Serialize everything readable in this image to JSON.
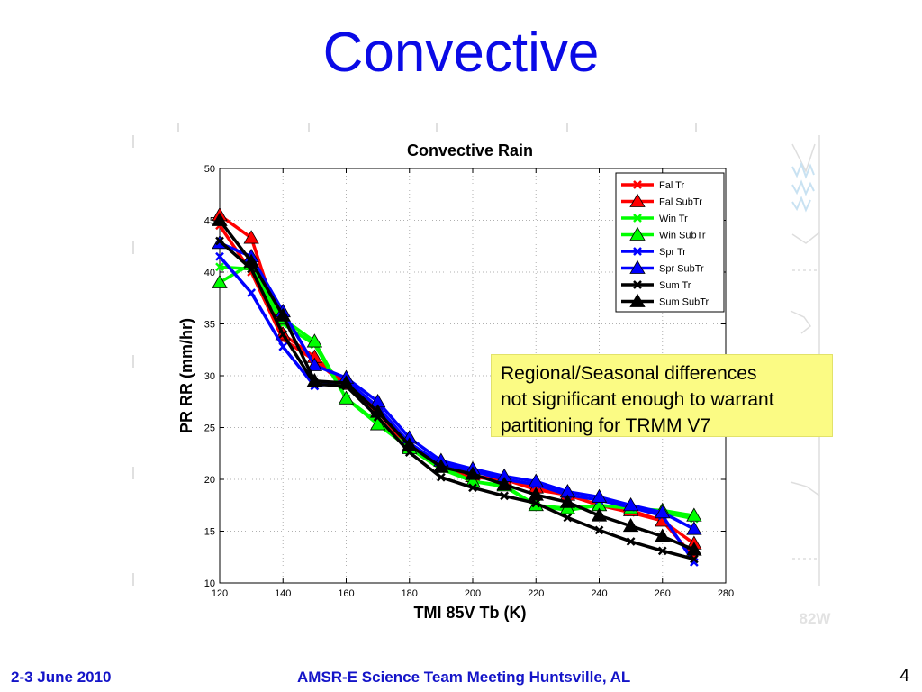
{
  "slide": {
    "title": "Convective",
    "note_lines": [
      "Regional/Seasonal differences",
      "not significant enough to warrant",
      "partitioning for TRMM V7"
    ],
    "footer_date": "2-3 June 2010",
    "footer_meeting": "AMSR-E Science Team Meeting  Huntsville, AL",
    "page_number": "4",
    "background_map_label": "82W"
  },
  "chart_data": {
    "type": "line",
    "title": "Convective Rain",
    "xlabel": "TMI 85V Tb (K)",
    "ylabel": "PR RR (mm/hr)",
    "xlim": [
      120,
      280
    ],
    "ylim": [
      10,
      50
    ],
    "xticks": [
      120,
      140,
      160,
      180,
      200,
      220,
      240,
      260,
      280
    ],
    "yticks": [
      10,
      15,
      20,
      25,
      30,
      35,
      40,
      45,
      50
    ],
    "grid": true,
    "legend_position": "top-right",
    "x": [
      120,
      130,
      140,
      150,
      160,
      170,
      180,
      190,
      200,
      210,
      220,
      230,
      240,
      250,
      260,
      270
    ],
    "series": [
      {
        "name": "Fal Tr",
        "color": "#ff0000",
        "marker": "x",
        "values": [
          44.5,
          40.0,
          33.5,
          31.5,
          29.0,
          26.5,
          23.0,
          21.0,
          20.2,
          20.0,
          19.0,
          18.5,
          17.5,
          16.8,
          16.0,
          12.5
        ]
      },
      {
        "name": "Fal SubTr",
        "color": "#ff0000",
        "marker": "triangle",
        "values": [
          45.5,
          43.3,
          34.0,
          31.8,
          29.2,
          26.8,
          23.2,
          21.2,
          20.3,
          20.0,
          19.2,
          18.5,
          17.5,
          17.0,
          16.0,
          13.8
        ]
      },
      {
        "name": "Win Tr",
        "color": "#00ff00",
        "marker": "x",
        "values": [
          40.5,
          40.3,
          35.0,
          33.0,
          27.8,
          25.5,
          23.0,
          21.0,
          19.8,
          19.3,
          17.5,
          17.0,
          17.5,
          17.2,
          16.8,
          16.2
        ]
      },
      {
        "name": "Win SubTr",
        "color": "#00ff00",
        "marker": "triangle",
        "values": [
          39.0,
          40.8,
          35.5,
          33.3,
          27.8,
          25.3,
          23.0,
          21.2,
          19.8,
          19.4,
          17.5,
          17.2,
          17.5,
          17.2,
          17.0,
          16.5
        ]
      },
      {
        "name": "Spr Tr",
        "color": "#0000ff",
        "marker": "x",
        "values": [
          41.5,
          38.0,
          32.8,
          29.0,
          29.5,
          27.0,
          23.5,
          21.5,
          20.8,
          20.0,
          19.5,
          18.5,
          18.0,
          17.3,
          16.5,
          12.0
        ]
      },
      {
        "name": "Spr SubTr",
        "color": "#0000ff",
        "marker": "triangle",
        "values": [
          42.8,
          41.5,
          36.2,
          31.0,
          29.8,
          27.5,
          24.0,
          21.8,
          21.0,
          20.3,
          19.8,
          18.8,
          18.3,
          17.5,
          16.8,
          15.2
        ]
      },
      {
        "name": "Sum Tr",
        "color": "#000000",
        "marker": "x",
        "values": [
          43.0,
          40.3,
          34.0,
          29.2,
          29.0,
          26.0,
          22.6,
          20.2,
          19.2,
          18.4,
          17.7,
          16.3,
          15.1,
          14.0,
          13.1,
          12.3
        ]
      },
      {
        "name": "Sum SubTr",
        "color": "#000000",
        "marker": "triangle",
        "values": [
          45.0,
          41.0,
          35.8,
          29.5,
          29.3,
          26.5,
          23.3,
          21.2,
          20.5,
          19.5,
          18.5,
          17.8,
          16.5,
          15.5,
          14.5,
          13.2
        ]
      }
    ]
  }
}
